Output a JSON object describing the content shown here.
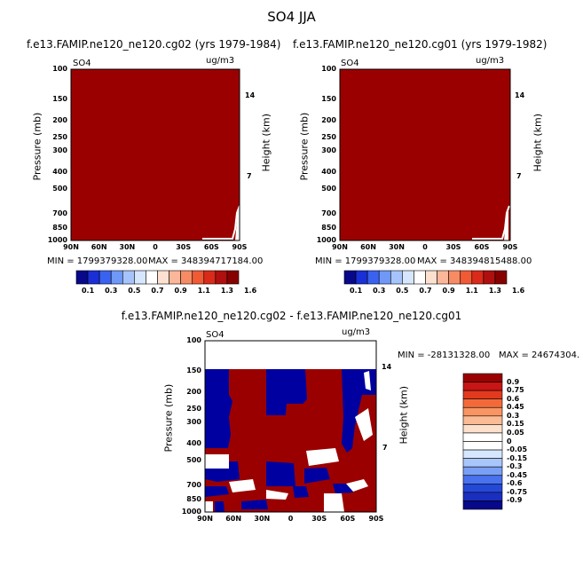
{
  "title": "SO4 JJA",
  "colors": {
    "dark_red": "#9b0000",
    "dark_blue": "#0000a0",
    "white": "#ffffff"
  },
  "chart_data": [
    {
      "type": "heatmap",
      "title": "f.e13.FAMIP.ne120_ne120.cg02 (yrs 1979-1984)",
      "left_label": "SO4",
      "right_label": "ug/m3",
      "ylabel": "Pressure (mb)",
      "y2label": "Height (km)",
      "xticks": [
        "90N",
        "60N",
        "30N",
        "0",
        "30S",
        "60S",
        "90S"
      ],
      "yticks": [
        "100",
        "150",
        "200",
        "250",
        "300",
        "400",
        "500",
        "700",
        "850",
        "1000"
      ],
      "y2ticks": [
        "14",
        "7"
      ],
      "min_text": "MIN = 1799379328.00",
      "max_text": "MAX = 348394717184.00",
      "colorbar_labels": [
        "0.1",
        "0.3",
        "0.5",
        "0.7",
        "0.9",
        "1.1",
        "1.3",
        "1.6"
      ],
      "description_fill": "dark red everywhere"
    },
    {
      "type": "heatmap",
      "title": "f.e13.FAMIP.ne120_ne120.cg01 (yrs 1979-1982)",
      "left_label": "SO4",
      "right_label": "ug/m3",
      "ylabel": "Pressure (mb)",
      "y2label": "Height (km)",
      "xticks": [
        "90N",
        "60N",
        "30N",
        "0",
        "30S",
        "60S",
        "90S"
      ],
      "yticks": [
        "100",
        "150",
        "200",
        "250",
        "300",
        "400",
        "500",
        "700",
        "850",
        "1000"
      ],
      "y2ticks": [
        "14",
        "7"
      ],
      "min_text": "MIN = 1799379328.00",
      "max_text": "MAX = 348394815488.00",
      "colorbar_labels": [
        "0.1",
        "0.3",
        "0.5",
        "0.7",
        "0.9",
        "1.1",
        "1.3",
        "1.6"
      ]
    },
    {
      "type": "heatmap",
      "title": "f.e13.FAMIP.ne120_ne120.cg02 - f.e13.FAMIP.ne120_ne120.cg01",
      "left_label": "SO4",
      "right_label": "ug/m3",
      "ylabel": "Pressure (mb)",
      "y2label": "Height (km)",
      "xticks": [
        "90N",
        "60N",
        "30N",
        "0",
        "30S",
        "60S",
        "90S"
      ],
      "yticks": [
        "100",
        "150",
        "200",
        "250",
        "300",
        "400",
        "500",
        "700",
        "850",
        "1000"
      ],
      "y2ticks": [
        "14",
        "7"
      ],
      "min_text": "MIN = -28131328.00",
      "max_text": "MAX = 24674304.",
      "colorbar_labels": [
        "0.9",
        "0.75",
        "0.6",
        "0.45",
        "0.3",
        "0.15",
        "0.05",
        "0",
        "-0.05",
        "-0.15",
        "-0.3",
        "-0.45",
        "-0.6",
        "-0.75",
        "-0.9"
      ]
    }
  ],
  "colorbar_colors_seq": [
    "#08088a",
    "#1a2fd6",
    "#3a62f0",
    "#6f98f7",
    "#a6c4fb",
    "#d6e6fd",
    "#ffffff",
    "#fde0d0",
    "#fbb79a",
    "#f78b63",
    "#f05a35",
    "#d92a1a",
    "#b00f0f",
    "#870000"
  ],
  "colorbar_colors_div": [
    "#9b0000",
    "#c81515",
    "#e23a1e",
    "#f36a3a",
    "#f99463",
    "#fbbb95",
    "#fde0cc",
    "#ffffff",
    "#ffffff",
    "#d6e6fd",
    "#a9c6fb",
    "#7aa0f5",
    "#4a72ee",
    "#2449d8",
    "#1a2fc0",
    "#08088a"
  ]
}
